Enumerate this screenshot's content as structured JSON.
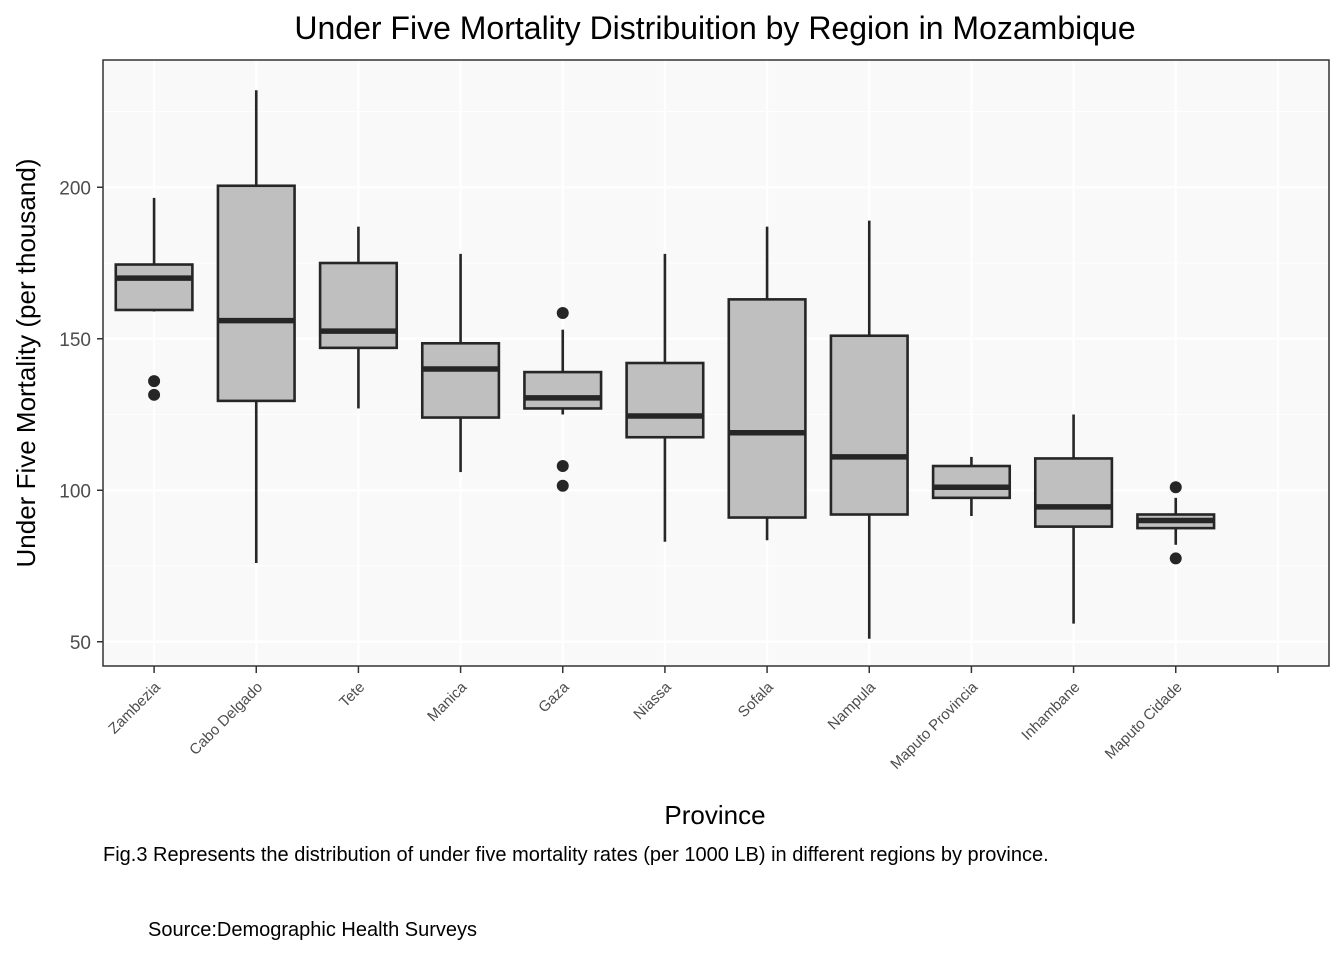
{
  "chart_data": {
    "type": "boxplot",
    "title": "Under Five Mortality Distribuition by Region in Mozambique",
    "xlabel": "Province",
    "ylabel": "Under Five Mortality (per thousand)",
    "ylim": [
      42,
      242
    ],
    "yticks": [
      50,
      100,
      150,
      200
    ],
    "grid": true,
    "categories": [
      "Zambezia",
      "Cabo Delgado",
      "Tete",
      "Manica",
      "Gaza",
      "Niassa",
      "Sofala",
      "Nampula",
      "Maputo Provincia",
      "Inhambane",
      "Maputo Cidade",
      ""
    ],
    "boxes": [
      {
        "category": "Zambezia",
        "whisker_low": 159,
        "q1": 159.5,
        "median": 170,
        "q3": 174.5,
        "whisker_high": 196.5,
        "outliers": [
          136,
          131.5
        ]
      },
      {
        "category": "Cabo Delgado",
        "whisker_low": 76,
        "q1": 129.5,
        "median": 156,
        "q3": 200.5,
        "whisker_high": 232,
        "outliers": []
      },
      {
        "category": "Tete",
        "whisker_low": 127,
        "q1": 147,
        "median": 152.5,
        "q3": 175,
        "whisker_high": 187,
        "outliers": []
      },
      {
        "category": "Manica",
        "whisker_low": 106,
        "q1": 124,
        "median": 140,
        "q3": 148.5,
        "whisker_high": 178,
        "outliers": []
      },
      {
        "category": "Gaza",
        "whisker_low": 125,
        "q1": 127,
        "median": 130.5,
        "q3": 139,
        "whisker_high": 153,
        "outliers": [
          158.5,
          108,
          101.5
        ]
      },
      {
        "category": "Niassa",
        "whisker_low": 83,
        "q1": 117.5,
        "median": 124.5,
        "q3": 142,
        "whisker_high": 178,
        "outliers": []
      },
      {
        "category": "Sofala",
        "whisker_low": 83.5,
        "q1": 91,
        "median": 119,
        "q3": 163,
        "whisker_high": 187,
        "outliers": []
      },
      {
        "category": "Nampula",
        "whisker_low": 51,
        "q1": 92,
        "median": 111,
        "q3": 151,
        "whisker_high": 189,
        "outliers": []
      },
      {
        "category": "Maputo Provincia",
        "whisker_low": 91.5,
        "q1": 97.5,
        "median": 101,
        "q3": 108,
        "whisker_high": 111,
        "outliers": []
      },
      {
        "category": "Inhambane",
        "whisker_low": 56,
        "q1": 88,
        "median": 94.5,
        "q3": 110.5,
        "whisker_high": 125,
        "outliers": []
      },
      {
        "category": "Maputo Cidade",
        "whisker_low": 82,
        "q1": 87.5,
        "median": 90,
        "q3": 92,
        "whisker_high": 97.5,
        "outliers": [
          101,
          77.5
        ]
      }
    ],
    "colors": {
      "panel": "#f9f9f9",
      "box_fill": "#bfbfbf",
      "box_line": "#262626",
      "grid": "#ffffff",
      "frame": "#333333"
    }
  },
  "caption": "Fig.3 Represents the distribution of under five mortality rates (per 1000 LB) in different regions by province.",
  "source": "Source:Demographic Health Surveys"
}
